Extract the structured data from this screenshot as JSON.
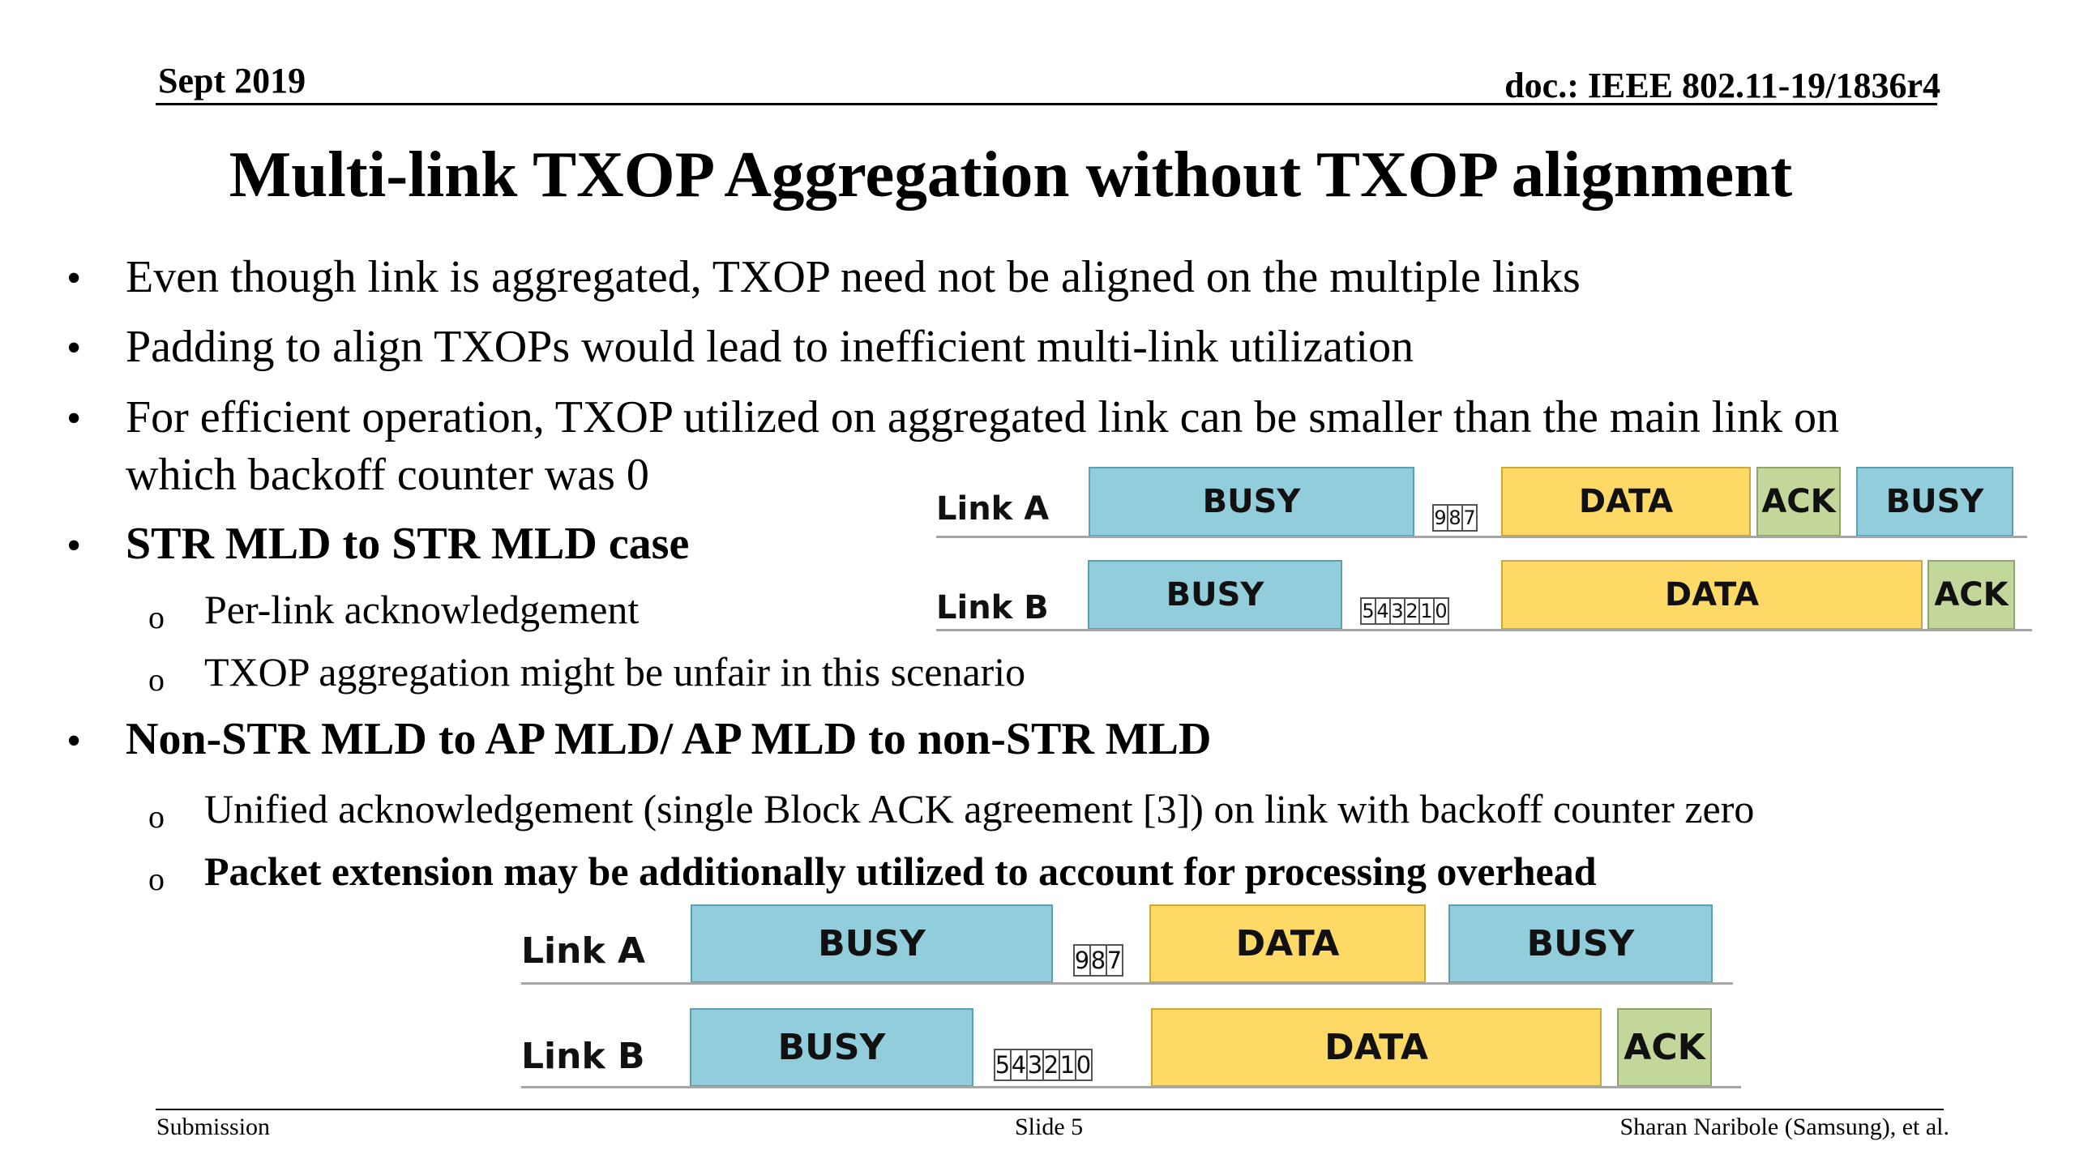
{
  "header": {
    "date": "Sept 2019",
    "doc": "doc.: IEEE 802.11-19/1836r4"
  },
  "title": "Multi-link TXOP Aggregation without TXOP alignment",
  "body": {
    "bullet_symbol": "•",
    "sub_bullet_symbol": "o",
    "b1": "Even though link is aggregated, TXOP need not be aligned on the multiple links",
    "b2": "Padding to align TXOPs would lead to inefficient multi-link utilization",
    "b3_line1": "For efficient operation, TXOP utilized on aggregated link can be smaller than the main link on",
    "b3_line2": "which backoff counter was 0",
    "b4": "STR MLD to STR MLD case",
    "b4_s1": "Per-link acknowledgement",
    "b4_s2": "TXOP aggregation might be unfair in this scenario",
    "b5": "Non-STR MLD to AP MLD/ AP MLD to non-STR MLD",
    "b5_s1": "Unified acknowledgement (single Block ACK agreement [3]) on link with backoff counter zero",
    "b5_s2": "Packet extension may be additionally utilized to account for processing overhead"
  },
  "diagram1": {
    "link_a": {
      "label": "Link A",
      "busy1": "BUSY",
      "counter": [
        "9",
        "8",
        "7"
      ],
      "data": "DATA",
      "ack": "ACK",
      "busy2": "BUSY"
    },
    "link_b": {
      "label": "Link B",
      "busy": "BUSY",
      "counter": [
        "5",
        "4",
        "3",
        "2",
        "1",
        "0"
      ],
      "data": "DATA",
      "ack": "ACK"
    }
  },
  "diagram2": {
    "link_a": {
      "label": "Link A",
      "busy1": "BUSY",
      "counter": [
        "9",
        "8",
        "7"
      ],
      "data": "DATA",
      "busy2": "BUSY"
    },
    "link_b": {
      "label": "Link B",
      "busy": "BUSY",
      "counter": [
        "5",
        "4",
        "3",
        "2",
        "1",
        "0"
      ],
      "data": "DATA",
      "ack": "ACK"
    }
  },
  "colors": {
    "busy": "#92CDDC",
    "data": "#FFD966",
    "ack": "#C4D79B"
  },
  "footer": {
    "left": "Submission",
    "center": "Slide 5",
    "right": "Sharan Naribole (Samsung), et al."
  }
}
